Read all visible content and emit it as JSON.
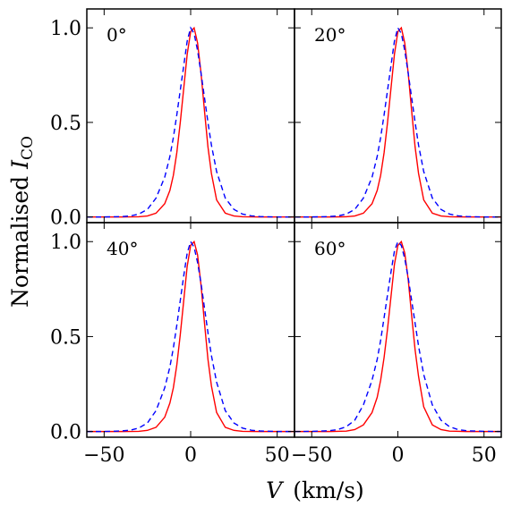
{
  "chart_data": {
    "type": "line",
    "title": "",
    "xlabel_italic": "V",
    "xlabel_rest": "(km/s)",
    "ylabel_prefix": "Normalised ",
    "ylabel_italic": "I",
    "ylabel_sub": "CO",
    "xlim": [
      -60,
      60
    ],
    "ylim": [
      -0.03,
      1.1
    ],
    "x_ticks": [
      -50,
      0,
      50
    ],
    "x_tick_labels": [
      "−50",
      "0",
      "50"
    ],
    "y_ticks": [
      0.0,
      0.5,
      1.0
    ],
    "y_tick_labels": [
      "0.0",
      "0.5",
      "1.0"
    ],
    "legend": "none",
    "grid": false,
    "series_styles": [
      {
        "color": "#ff0000",
        "dash": "solid"
      },
      {
        "color": "#0000ff",
        "dash": "dashed"
      }
    ],
    "panels": [
      {
        "label": "0°",
        "series": [
          {
            "x": [
              -60,
              -50,
              -40,
              -30,
              -25,
              -20,
              -15,
              -12,
              -10,
              -8,
              -6,
              -4,
              -2,
              0,
              2,
              4,
              6,
              8,
              10,
              12,
              15,
              20,
              25,
              30,
              40,
              50,
              60
            ],
            "y": [
              0,
              0,
              0,
              0.001,
              0.005,
              0.02,
              0.07,
              0.14,
              0.22,
              0.34,
              0.5,
              0.68,
              0.86,
              0.98,
              1.0,
              0.92,
              0.76,
              0.56,
              0.37,
              0.23,
              0.09,
              0.02,
              0.005,
              0.001,
              0,
              0,
              0
            ]
          },
          {
            "x": [
              -60,
              -50,
              -40,
              -35,
              -30,
              -25,
              -20,
              -15,
              -12,
              -10,
              -8,
              -6,
              -4,
              -2,
              0,
              2,
              4,
              6,
              8,
              10,
              12,
              15,
              20,
              25,
              30,
              35,
              40,
              50,
              60
            ],
            "y": [
              0,
              0,
              0.002,
              0.005,
              0.015,
              0.04,
              0.1,
              0.21,
              0.32,
              0.42,
              0.54,
              0.67,
              0.8,
              0.93,
              1.0,
              0.97,
              0.88,
              0.76,
              0.63,
              0.5,
              0.38,
              0.24,
              0.1,
              0.04,
              0.015,
              0.006,
              0.002,
              0,
              0
            ]
          }
        ]
      },
      {
        "label": "20°",
        "series": [
          {
            "x": [
              -60,
              -50,
              -40,
              -30,
              -25,
              -20,
              -15,
              -12,
              -10,
              -8,
              -6,
              -4,
              -2,
              0,
              2,
              4,
              6,
              8,
              10,
              12,
              15,
              20,
              25,
              30,
              40,
              50,
              60
            ],
            "y": [
              0,
              0,
              0,
              0.001,
              0.005,
              0.02,
              0.07,
              0.14,
              0.22,
              0.34,
              0.5,
              0.68,
              0.86,
              0.98,
              1.0,
              0.92,
              0.76,
              0.56,
              0.37,
              0.23,
              0.09,
              0.02,
              0.005,
              0.001,
              0,
              0,
              0
            ]
          },
          {
            "x": [
              -60,
              -50,
              -40,
              -35,
              -30,
              -25,
              -20,
              -15,
              -12,
              -10,
              -8,
              -6,
              -4,
              -2,
              0,
              2,
              4,
              6,
              8,
              10,
              12,
              15,
              20,
              25,
              30,
              35,
              40,
              50,
              60
            ],
            "y": [
              0,
              0,
              0.002,
              0.005,
              0.015,
              0.04,
              0.1,
              0.21,
              0.32,
              0.42,
              0.54,
              0.67,
              0.8,
              0.93,
              1.0,
              0.97,
              0.88,
              0.76,
              0.63,
              0.5,
              0.38,
              0.24,
              0.1,
              0.04,
              0.015,
              0.006,
              0.002,
              0,
              0
            ]
          }
        ]
      },
      {
        "label": "40°",
        "series": [
          {
            "x": [
              -60,
              -50,
              -40,
              -30,
              -25,
              -20,
              -15,
              -12,
              -10,
              -8,
              -6,
              -4,
              -2,
              0,
              2,
              4,
              6,
              8,
              10,
              12,
              15,
              20,
              25,
              30,
              40,
              50,
              60
            ],
            "y": [
              0,
              0,
              0,
              0.001,
              0.006,
              0.022,
              0.075,
              0.15,
              0.23,
              0.35,
              0.51,
              0.69,
              0.87,
              0.98,
              1.0,
              0.93,
              0.77,
              0.57,
              0.38,
              0.24,
              0.1,
              0.022,
              0.006,
              0.001,
              0,
              0,
              0
            ]
          },
          {
            "x": [
              -60,
              -50,
              -40,
              -35,
              -30,
              -25,
              -20,
              -15,
              -12,
              -10,
              -8,
              -6,
              -4,
              -2,
              0,
              2,
              4,
              6,
              8,
              10,
              12,
              15,
              20,
              25,
              30,
              35,
              40,
              50,
              60
            ],
            "y": [
              0,
              0,
              0.003,
              0.007,
              0.018,
              0.045,
              0.11,
              0.23,
              0.34,
              0.44,
              0.56,
              0.69,
              0.82,
              0.94,
              1.0,
              0.97,
              0.89,
              0.78,
              0.65,
              0.52,
              0.4,
              0.26,
              0.11,
              0.045,
              0.018,
              0.007,
              0.003,
              0,
              0
            ]
          }
        ]
      },
      {
        "label": "60°",
        "series": [
          {
            "x": [
              -60,
              -50,
              -40,
              -30,
              -25,
              -20,
              -15,
              -12,
              -10,
              -8,
              -6,
              -4,
              -2,
              0,
              2,
              4,
              6,
              8,
              10,
              12,
              15,
              20,
              25,
              30,
              40,
              50,
              60
            ],
            "y": [
              0,
              0,
              0,
              0.002,
              0.01,
              0.035,
              0.1,
              0.18,
              0.27,
              0.39,
              0.54,
              0.71,
              0.88,
              0.98,
              1.0,
              0.94,
              0.8,
              0.61,
              0.43,
              0.29,
              0.13,
              0.035,
              0.01,
              0.002,
              0,
              0,
              0
            ]
          },
          {
            "x": [
              -60,
              -50,
              -40,
              -35,
              -30,
              -25,
              -20,
              -15,
              -12,
              -10,
              -8,
              -6,
              -4,
              -2,
              0,
              2,
              4,
              6,
              8,
              10,
              12,
              15,
              20,
              25,
              30,
              35,
              40,
              50,
              60
            ],
            "y": [
              0,
              0.001,
              0.004,
              0.01,
              0.025,
              0.06,
              0.14,
              0.27,
              0.38,
              0.48,
              0.6,
              0.72,
              0.84,
              0.95,
              1.0,
              0.98,
              0.91,
              0.81,
              0.69,
              0.57,
              0.45,
              0.3,
              0.14,
              0.06,
              0.025,
              0.01,
              0.004,
              0.001,
              0
            ]
          }
        ]
      }
    ]
  }
}
